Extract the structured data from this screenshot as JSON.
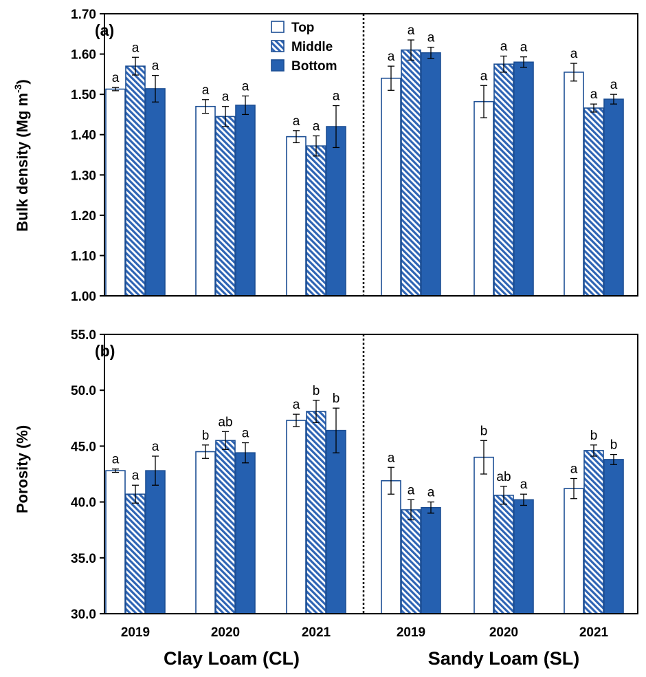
{
  "chart_data": [
    {
      "type": "bar",
      "panel_label": "(a)",
      "ylabel": "Bulk density (Mg m",
      "ylabel_sup": "-3",
      "ylabel_close": ")",
      "ylim": [
        1.0,
        1.7
      ],
      "yticks": [
        1.0,
        1.1,
        1.2,
        1.3,
        1.4,
        1.5,
        1.6,
        1.7
      ],
      "tick_decimals": 2,
      "categories": [
        "2019",
        "2020",
        "2021",
        "2019",
        "2020",
        "2021"
      ],
      "groups": [
        "Clay Loam (CL)",
        "Sandy Loam (SL)"
      ],
      "legend": {
        "position": "top-center",
        "entries": [
          "Top",
          "Middle",
          "Bottom"
        ]
      },
      "series": [
        {
          "name": "Top",
          "values": [
            1.513,
            1.47,
            1.395,
            1.54,
            1.482,
            1.555
          ],
          "errors": [
            0.004,
            0.017,
            0.015,
            0.03,
            0.04,
            0.022
          ],
          "letters": [
            "a",
            "a",
            "a",
            "a",
            "a",
            "a"
          ]
        },
        {
          "name": "Middle",
          "values": [
            1.57,
            1.445,
            1.372,
            1.61,
            1.575,
            1.466
          ],
          "errors": [
            0.022,
            0.025,
            0.025,
            0.025,
            0.02,
            0.01
          ],
          "letters": [
            "a",
            "a",
            "a",
            "a",
            "a",
            "a"
          ]
        },
        {
          "name": "Bottom",
          "values": [
            1.514,
            1.473,
            1.42,
            1.603,
            1.58,
            1.488
          ],
          "errors": [
            0.033,
            0.023,
            0.052,
            0.014,
            0.013,
            0.012
          ],
          "letters": [
            "a",
            "a",
            "a",
            "a",
            "a",
            "a"
          ]
        }
      ]
    },
    {
      "type": "bar",
      "panel_label": "(b)",
      "ylabel": "Porosity (%)",
      "ylim": [
        30.0,
        55.0
      ],
      "yticks": [
        30.0,
        35.0,
        40.0,
        45.0,
        50.0,
        55.0
      ],
      "tick_decimals": 1,
      "categories": [
        "2019",
        "2020",
        "2021",
        "2019",
        "2020",
        "2021"
      ],
      "groups": [
        "Clay Loam (CL)",
        "Sandy Loam (SL)"
      ],
      "series": [
        {
          "name": "Top",
          "values": [
            42.8,
            44.5,
            47.3,
            41.9,
            44.0,
            41.2
          ],
          "errors": [
            0.15,
            0.6,
            0.55,
            1.2,
            1.5,
            0.9
          ],
          "letters": [
            "a",
            "b",
            "a",
            "a",
            "b",
            "a"
          ]
        },
        {
          "name": "Middle",
          "values": [
            40.7,
            45.5,
            48.1,
            39.3,
            40.6,
            44.6
          ],
          "errors": [
            0.8,
            0.8,
            1.0,
            0.9,
            0.8,
            0.5
          ],
          "letters": [
            "a",
            "ab",
            "b",
            "a",
            "ab",
            "b"
          ]
        },
        {
          "name": "Bottom",
          "values": [
            42.8,
            44.4,
            46.4,
            39.5,
            40.2,
            43.8
          ],
          "errors": [
            1.3,
            0.9,
            2.0,
            0.5,
            0.5,
            0.45
          ],
          "letters": [
            "a",
            "a",
            "b",
            "a",
            "a",
            "b"
          ]
        }
      ]
    }
  ],
  "colors": {
    "top": "#ffffff",
    "middle_hatch": "#2e64b4",
    "middle_bg": "#ffffff",
    "bottom": "#2560b0",
    "outline": "#1d4f94",
    "axis": "#000000"
  }
}
